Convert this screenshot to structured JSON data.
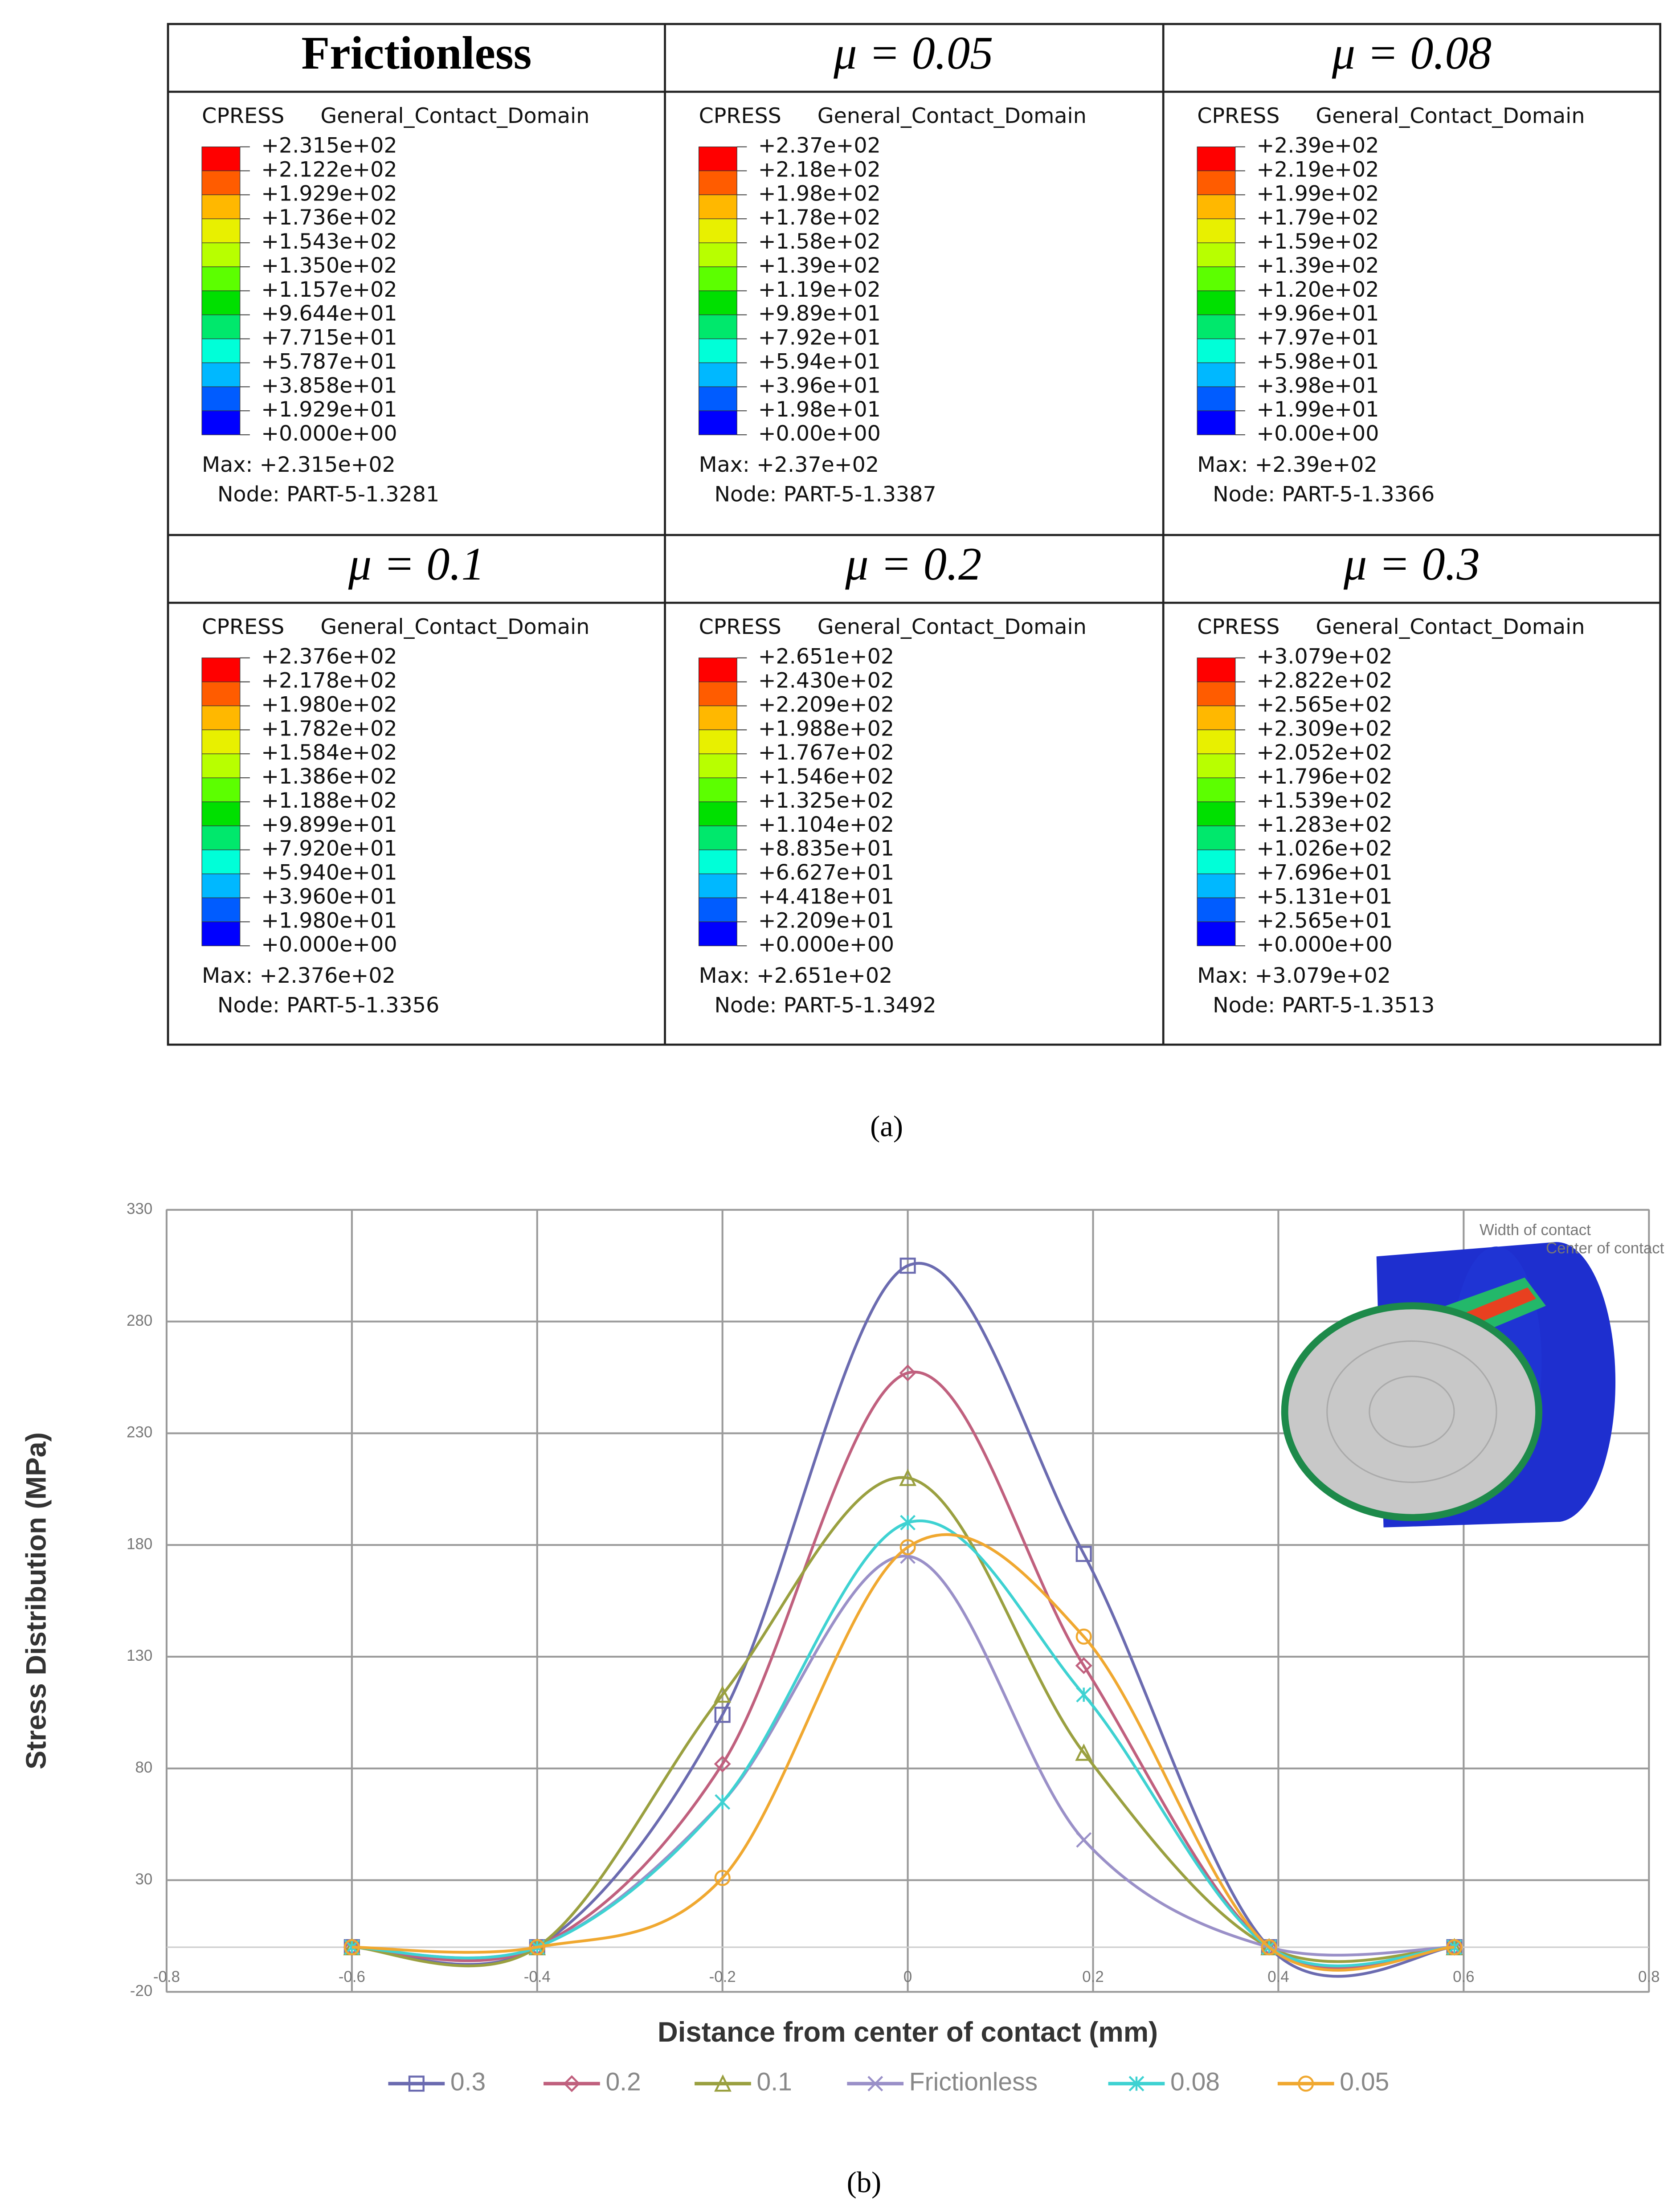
{
  "colormap": [
    "#ff0000",
    "#ff5c00",
    "#ffb800",
    "#e8f000",
    "#b8ff00",
    "#5cff00",
    "#00e000",
    "#00e86c",
    "#00ffd8",
    "#00b8ff",
    "#005cff",
    "#0000ff"
  ],
  "panels": [
    {
      "header": "Frictionless",
      "variable": "CPRESS",
      "domain": "General_Contact_Domain",
      "levels": [
        "+2.315e+02",
        "+2.122e+02",
        "+1.929e+02",
        "+1.736e+02",
        "+1.543e+02",
        "+1.350e+02",
        "+1.157e+02",
        "+9.644e+01",
        "+7.715e+01",
        "+5.787e+01",
        "+3.858e+01",
        "+1.929e+01",
        "+0.000e+00"
      ],
      "max": "Max: +2.315e+02",
      "node": "Node: PART-5-1.3281"
    },
    {
      "header": "μ = 0.05",
      "variable": "CPRESS",
      "domain": "General_Contact_Domain",
      "levels": [
        "+2.37e+02",
        "+2.18e+02",
        "+1.98e+02",
        "+1.78e+02",
        "+1.58e+02",
        "+1.39e+02",
        "+1.19e+02",
        "+9.89e+01",
        "+7.92e+01",
        "+5.94e+01",
        "+3.96e+01",
        "+1.98e+01",
        "+0.00e+00"
      ],
      "max": "Max: +2.37e+02",
      "node": "Node: PART-5-1.3387"
    },
    {
      "header": "μ = 0.08",
      "variable": "CPRESS",
      "domain": "General_Contact_Domain",
      "levels": [
        "+2.39e+02",
        "+2.19e+02",
        "+1.99e+02",
        "+1.79e+02",
        "+1.59e+02",
        "+1.39e+02",
        "+1.20e+02",
        "+9.96e+01",
        "+7.97e+01",
        "+5.98e+01",
        "+3.98e+01",
        "+1.99e+01",
        "+0.00e+00"
      ],
      "max": "Max: +2.39e+02",
      "node": "Node: PART-5-1.3366"
    },
    {
      "header": "μ = 0.1",
      "variable": "CPRESS",
      "domain": "General_Contact_Domain",
      "levels": [
        "+2.376e+02",
        "+2.178e+02",
        "+1.980e+02",
        "+1.782e+02",
        "+1.584e+02",
        "+1.386e+02",
        "+1.188e+02",
        "+9.899e+01",
        "+7.920e+01",
        "+5.940e+01",
        "+3.960e+01",
        "+1.980e+01",
        "+0.000e+00"
      ],
      "max": "Max: +2.376e+02",
      "node": "Node: PART-5-1.3356"
    },
    {
      "header": "μ = 0.2",
      "variable": "CPRESS",
      "domain": "General_Contact_Domain",
      "levels": [
        "+2.651e+02",
        "+2.430e+02",
        "+2.209e+02",
        "+1.988e+02",
        "+1.767e+02",
        "+1.546e+02",
        "+1.325e+02",
        "+1.104e+02",
        "+8.835e+01",
        "+6.627e+01",
        "+4.418e+01",
        "+2.209e+01",
        "+0.000e+00"
      ],
      "max": "Max: +2.651e+02",
      "node": "Node: PART-5-1.3492"
    },
    {
      "header": "μ = 0.3",
      "variable": "CPRESS",
      "domain": "General_Contact_Domain",
      "levels": [
        "+3.079e+02",
        "+2.822e+02",
        "+2.565e+02",
        "+2.309e+02",
        "+2.052e+02",
        "+1.796e+02",
        "+1.539e+02",
        "+1.283e+02",
        "+1.026e+02",
        "+7.696e+01",
        "+5.131e+01",
        "+2.565e+01",
        "+0.000e+00"
      ],
      "max": "Max: +3.079e+02",
      "node": "Node: PART-5-1.3513"
    }
  ],
  "caption_a": "(a)",
  "chart_data": {
    "type": "line",
    "xlabel": "Distance from center of contact (mm)",
    "ylabel": "Stress Distribution (MPa)",
    "xlim": [
      -0.8,
      0.8
    ],
    "xticks": [
      -0.8,
      -0.6,
      -0.4,
      -0.2,
      0,
      0.2,
      0.4,
      0.6,
      0.8
    ],
    "ylim": [
      -20,
      330
    ],
    "yticks": [
      -20,
      30,
      80,
      130,
      180,
      230,
      280,
      330
    ],
    "grid": true,
    "x": [
      -0.6,
      -0.4,
      -0.2,
      0,
      0.19,
      0.39,
      0.59
    ],
    "series": [
      {
        "name": "0.3",
        "color": "#6b6bb0",
        "marker": "square",
        "values": [
          0,
          0,
          104,
          305,
          176,
          0,
          0
        ]
      },
      {
        "name": "0.2",
        "color": "#c0607e",
        "marker": "diamond",
        "values": [
          0,
          0,
          82,
          257,
          126,
          0,
          0
        ]
      },
      {
        "name": "0.1",
        "color": "#9aa040",
        "marker": "triangle",
        "values": [
          0,
          0,
          113,
          210,
          87,
          0,
          0
        ]
      },
      {
        "name": "Frictionless",
        "color": "#9a90c8",
        "marker": "x",
        "values": [
          0,
          0,
          65,
          175,
          48,
          0,
          0
        ]
      },
      {
        "name": "0.08",
        "color": "#3ed2d2",
        "marker": "star",
        "values": [
          0,
          0,
          65,
          190,
          113,
          0,
          0
        ]
      },
      {
        "name": "0.05",
        "color": "#f0a830",
        "marker": "circle",
        "values": [
          0,
          0,
          31,
          179,
          139,
          0,
          0
        ]
      }
    ],
    "inset_labels": [
      "Width of contact",
      "Center of contact"
    ]
  },
  "caption_b": "(b)"
}
